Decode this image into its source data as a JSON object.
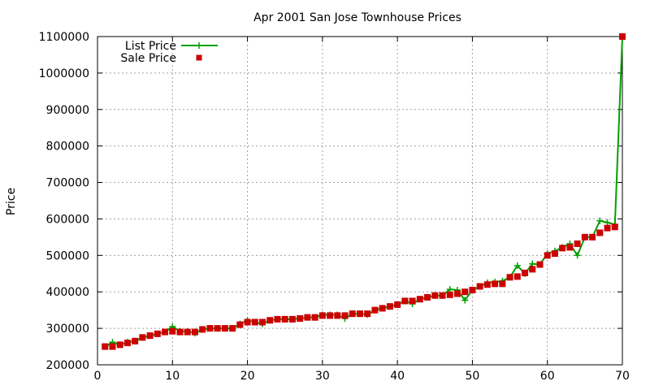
{
  "colors": {
    "list_price": "#00a000",
    "sale_price": "#cc0000",
    "grid": "#a0a0a0",
    "axis": "#000000"
  },
  "chart_data": {
    "type": "line",
    "title": "Apr 2001 San Jose Townhouse Prices",
    "xlabel": "",
    "ylabel": "Price",
    "xlim": [
      0,
      70
    ],
    "ylim": [
      200000,
      1100000
    ],
    "x_ticks": [
      0,
      10,
      20,
      30,
      40,
      50,
      60,
      70
    ],
    "y_ticks": [
      200000,
      300000,
      400000,
      500000,
      600000,
      700000,
      800000,
      900000,
      1000000,
      1100000
    ],
    "grid": true,
    "legend_position": "top-left",
    "x": [
      1,
      2,
      3,
      4,
      5,
      6,
      7,
      8,
      9,
      10,
      11,
      12,
      13,
      14,
      15,
      16,
      17,
      18,
      19,
      20,
      21,
      22,
      23,
      24,
      25,
      26,
      27,
      28,
      29,
      30,
      31,
      32,
      33,
      34,
      35,
      36,
      37,
      38,
      39,
      40,
      41,
      42,
      43,
      44,
      45,
      46,
      47,
      48,
      49,
      50,
      51,
      52,
      53,
      54,
      55,
      56,
      57,
      58,
      59,
      60,
      61,
      62,
      63,
      64,
      65,
      66,
      67,
      68,
      69,
      70
    ],
    "series": [
      {
        "name": "List Price",
        "style": "line-plus",
        "color": "#00a000",
        "values": [
          250000,
          262000,
          255000,
          262000,
          265000,
          275000,
          280000,
          285000,
          290000,
          305000,
          292000,
          292000,
          287000,
          297000,
          300000,
          300000,
          300000,
          300000,
          312000,
          322000,
          317000,
          312000,
          322000,
          325000,
          325000,
          325000,
          327000,
          330000,
          330000,
          337000,
          337000,
          337000,
          327000,
          340000,
          340000,
          338000,
          350000,
          355000,
          360000,
          365000,
          375000,
          367000,
          380000,
          385000,
          390000,
          390000,
          407000,
          405000,
          377000,
          405000,
          415000,
          425000,
          427000,
          430000,
          440000,
          472000,
          450000,
          477000,
          475000,
          505000,
          512000,
          522000,
          532000,
          500000,
          550000,
          550000,
          595000,
          590000,
          585000,
          1100000
        ]
      },
      {
        "name": "Sale Price",
        "style": "square-points",
        "color": "#cc0000",
        "values": [
          250000,
          250000,
          255000,
          260000,
          265000,
          275000,
          280000,
          285000,
          290000,
          292000,
          290000,
          290000,
          290000,
          297000,
          300000,
          300000,
          300000,
          300000,
          310000,
          317000,
          317000,
          317000,
          322000,
          325000,
          325000,
          325000,
          327000,
          330000,
          330000,
          335000,
          335000,
          335000,
          335000,
          340000,
          340000,
          340000,
          350000,
          355000,
          360000,
          365000,
          375000,
          375000,
          380000,
          385000,
          390000,
          390000,
          392000,
          395000,
          400000,
          405000,
          415000,
          420000,
          422000,
          422000,
          440000,
          442000,
          452000,
          462000,
          475000,
          500000,
          505000,
          520000,
          522000,
          532000,
          550000,
          550000,
          562000,
          575000,
          578000,
          1100000
        ]
      }
    ]
  }
}
